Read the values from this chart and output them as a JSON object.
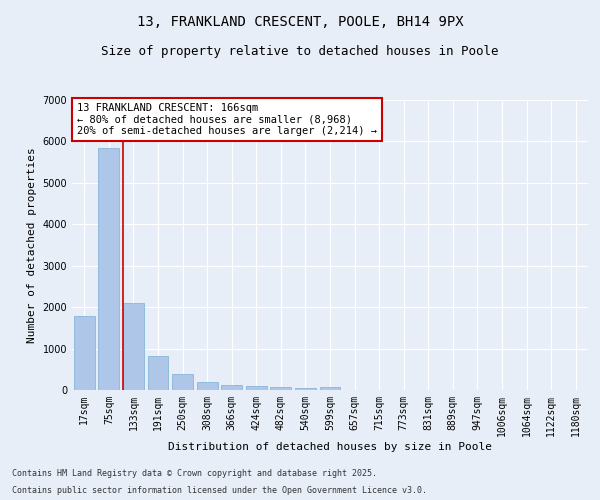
{
  "title": "13, FRANKLAND CRESCENT, POOLE, BH14 9PX",
  "subtitle": "Size of property relative to detached houses in Poole",
  "xlabel": "Distribution of detached houses by size in Poole",
  "ylabel": "Number of detached properties",
  "categories": [
    "17sqm",
    "75sqm",
    "133sqm",
    "191sqm",
    "250sqm",
    "308sqm",
    "366sqm",
    "424sqm",
    "482sqm",
    "540sqm",
    "599sqm",
    "657sqm",
    "715sqm",
    "773sqm",
    "831sqm",
    "889sqm",
    "947sqm",
    "1006sqm",
    "1064sqm",
    "1122sqm",
    "1180sqm"
  ],
  "values": [
    1780,
    5830,
    2100,
    820,
    380,
    200,
    110,
    90,
    70,
    50,
    70,
    0,
    0,
    0,
    0,
    0,
    0,
    0,
    0,
    0,
    0
  ],
  "bar_color": "#aec6e8",
  "bar_edge_color": "#7aaed6",
  "background_color": "#e8eef8",
  "grid_color": "#ffffff",
  "vline_x_index": 2,
  "vline_color": "#cc0000",
  "annotation_text": "13 FRANKLAND CRESCENT: 166sqm\n← 80% of detached houses are smaller (8,968)\n20% of semi-detached houses are larger (2,214) →",
  "annotation_box_color": "#ffffff",
  "annotation_box_edge_color": "#cc0000",
  "ylim": [
    0,
    7000
  ],
  "yticks": [
    0,
    1000,
    2000,
    3000,
    4000,
    5000,
    6000,
    7000
  ],
  "footnote_line1": "Contains HM Land Registry data © Crown copyright and database right 2025.",
  "footnote_line2": "Contains public sector information licensed under the Open Government Licence v3.0.",
  "title_fontsize": 10,
  "subtitle_fontsize": 9,
  "xlabel_fontsize": 8,
  "ylabel_fontsize": 8,
  "tick_fontsize": 7,
  "annotation_fontsize": 7.5,
  "footnote_fontsize": 6
}
